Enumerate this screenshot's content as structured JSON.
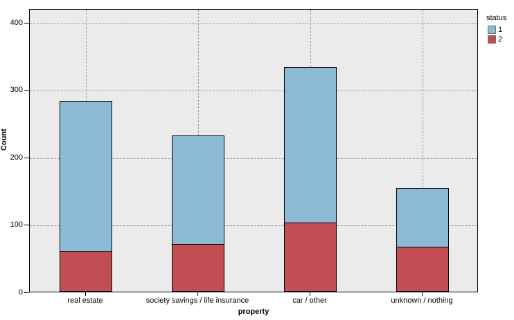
{
  "chart_data": {
    "type": "bar",
    "stacked": true,
    "xlabel": "property",
    "ylabel": "Count",
    "categories": [
      "real estate",
      "society savings / life insurance",
      "car / other",
      "unknown / nothing"
    ],
    "series": [
      {
        "name": "2",
        "color": "#c04e52",
        "values": [
          60,
          71,
          102,
          67
        ]
      },
      {
        "name": "1",
        "color": "#8cbad4",
        "values": [
          222,
          161,
          230,
          87
        ]
      }
    ],
    "totals": [
      282,
      232,
      332,
      154
    ],
    "yticks": [
      0,
      100,
      200,
      300,
      400
    ],
    "ylim": [
      0,
      420
    ],
    "grid": true,
    "legend": {
      "title": "status",
      "position": "right",
      "entries": [
        {
          "label": "1",
          "color": "#8cbad4"
        },
        {
          "label": "2",
          "color": "#c04e52"
        }
      ]
    },
    "colors": {
      "plot_background": "#ebebeb",
      "gridline": "#9a9a9a",
      "axis": "#000000"
    }
  }
}
